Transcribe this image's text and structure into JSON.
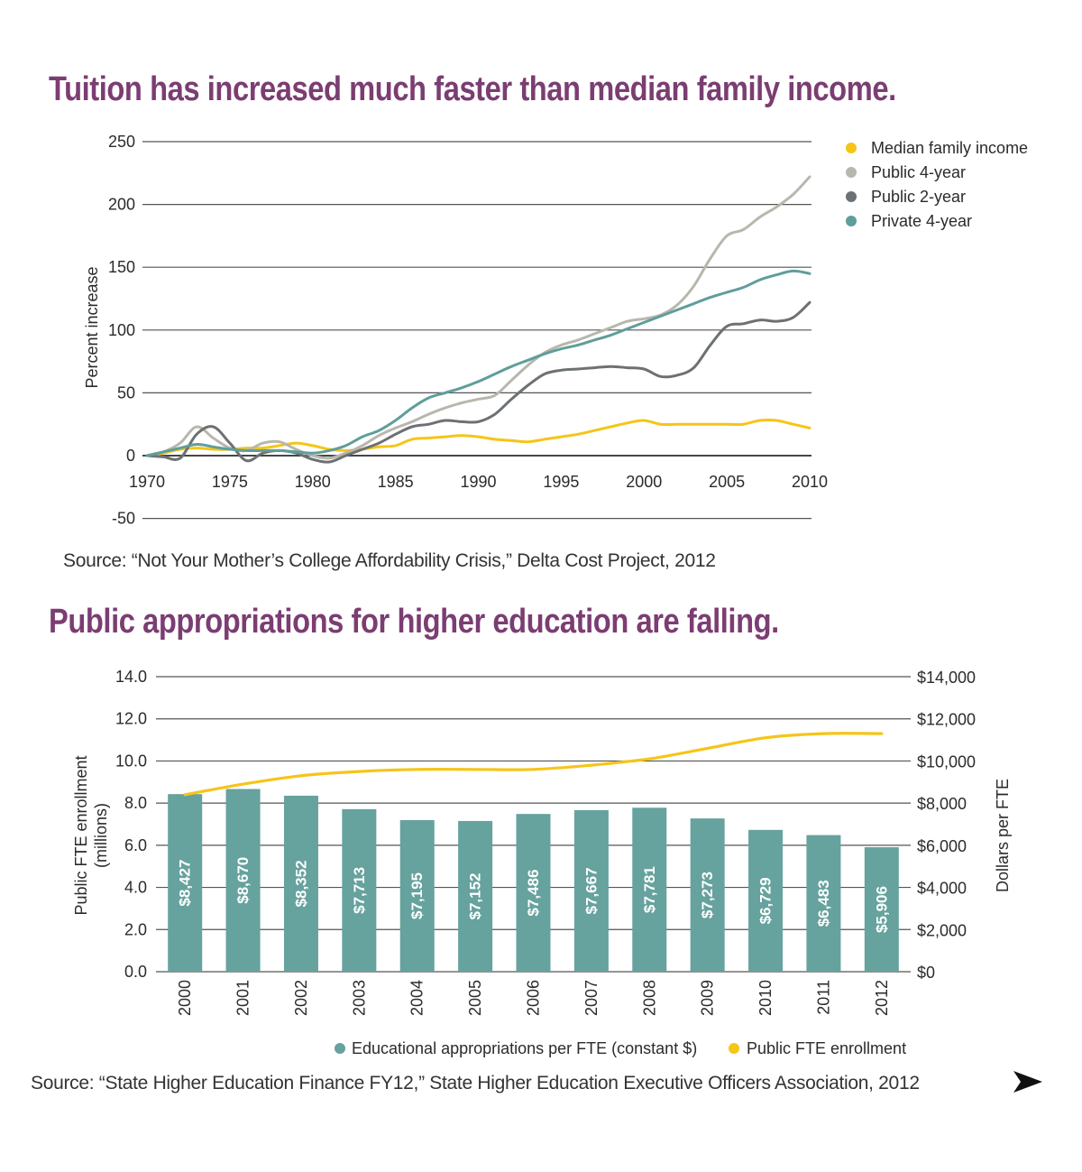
{
  "chart_data": [
    {
      "type": "line",
      "title": "Tuition has increased much faster than median family income.",
      "ylabel": "Percent increase",
      "ylim": [
        -50,
        250
      ],
      "xlim": [
        1970,
        2010
      ],
      "yticks": [
        "250",
        "200",
        "150",
        "100",
        "50",
        "0",
        "-50"
      ],
      "xticks": [
        "1970",
        "1975",
        "1980",
        "1985",
        "1990",
        "1995",
        "2000",
        "2005",
        "2010"
      ],
      "grid": true,
      "legend_position": "top-right",
      "series": [
        {
          "name": "Median family income",
          "color": "#f5c518",
          "x": [
            1970,
            1971,
            1972,
            1973,
            1974,
            1975,
            1976,
            1977,
            1978,
            1979,
            1980,
            1981,
            1982,
            1983,
            1984,
            1985,
            1986,
            1987,
            1988,
            1989,
            1990,
            1991,
            1992,
            1993,
            1994,
            1995,
            1996,
            1997,
            1998,
            1999,
            2000,
            2001,
            2002,
            2003,
            2004,
            2005,
            2006,
            2007,
            2008,
            2009,
            2010
          ],
          "values": [
            0,
            2,
            5,
            6,
            5,
            5,
            6,
            6,
            8,
            10,
            8,
            5,
            4,
            5,
            7,
            8,
            13,
            14,
            15,
            16,
            15,
            13,
            12,
            11,
            13,
            15,
            17,
            20,
            23,
            26,
            28,
            25,
            25,
            25,
            25,
            25,
            25,
            28,
            28,
            25,
            22
          ]
        },
        {
          "name": "Public 4-year",
          "color": "#b8b7ad",
          "x": [
            1970,
            1971,
            1972,
            1973,
            1974,
            1975,
            1976,
            1977,
            1978,
            1979,
            1980,
            1981,
            1982,
            1983,
            1984,
            1985,
            1986,
            1987,
            1988,
            1989,
            1990,
            1991,
            1992,
            1993,
            1994,
            1995,
            1996,
            1997,
            1998,
            1999,
            2000,
            2001,
            2002,
            2003,
            2004,
            2005,
            2006,
            2007,
            2008,
            2009,
            2010
          ],
          "values": [
            0,
            3,
            10,
            23,
            14,
            6,
            4,
            10,
            11,
            5,
            0,
            -2,
            2,
            8,
            16,
            22,
            27,
            33,
            38,
            42,
            45,
            48,
            60,
            72,
            82,
            88,
            92,
            97,
            102,
            107,
            109,
            112,
            120,
            135,
            157,
            175,
            180,
            190,
            198,
            208,
            222
          ]
        },
        {
          "name": "Public 2-year",
          "color": "#6d7174",
          "x": [
            1970,
            1971,
            1972,
            1973,
            1974,
            1975,
            1976,
            1977,
            1978,
            1979,
            1980,
            1981,
            1982,
            1983,
            1984,
            1985,
            1986,
            1987,
            1988,
            1989,
            1990,
            1991,
            1992,
            1993,
            1994,
            1995,
            1996,
            1997,
            1998,
            1999,
            2000,
            2001,
            2002,
            2003,
            2004,
            2005,
            2006,
            2007,
            2008,
            2009,
            2010
          ],
          "values": [
            0,
            -1,
            -2,
            17,
            23,
            10,
            -4,
            2,
            4,
            2,
            -3,
            -5,
            0,
            5,
            10,
            17,
            23,
            25,
            28,
            27,
            27,
            33,
            45,
            56,
            65,
            68,
            69,
            70,
            71,
            70,
            69,
            63,
            64,
            70,
            88,
            103,
            105,
            108,
            107,
            110,
            122
          ]
        },
        {
          "name": "Private 4-year",
          "color": "#5f9e9a",
          "x": [
            1970,
            1971,
            1972,
            1973,
            1974,
            1975,
            1976,
            1977,
            1978,
            1979,
            1980,
            1981,
            1982,
            1983,
            1984,
            1985,
            1986,
            1987,
            1988,
            1989,
            1990,
            1991,
            1992,
            1993,
            1994,
            1995,
            1996,
            1997,
            1998,
            1999,
            2000,
            2001,
            2002,
            2003,
            2004,
            2005,
            2006,
            2007,
            2008,
            2009,
            2010
          ],
          "values": [
            0,
            3,
            6,
            9,
            7,
            5,
            4,
            4,
            4,
            3,
            2,
            4,
            8,
            15,
            20,
            28,
            38,
            46,
            50,
            54,
            59,
            65,
            71,
            76,
            81,
            85,
            88,
            92,
            96,
            101,
            106,
            111,
            116,
            121,
            126,
            130,
            134,
            140,
            144,
            147,
            145
          ]
        }
      ],
      "source": "Source: “Not Your Mother’s College Affordability Crisis,” Delta Cost Project, 2012"
    },
    {
      "type": "bar",
      "title": "Public appropriations for higher education are falling.",
      "ylabel_left": "Public FTE enrollment (millions)",
      "ylabel_left_lines": [
        "Public FTE enrollment",
        "(millions)"
      ],
      "ylabel_right": "Dollars per FTE",
      "ylim_left": [
        0,
        14
      ],
      "ylim_right": [
        0,
        14000
      ],
      "yticks_left": [
        "14.0",
        "12.0",
        "10.0",
        "8.0",
        "6.0",
        "4.0",
        "2.0",
        "0.0"
      ],
      "yticks_right": [
        "$14,000",
        "$12,000",
        "$10,000",
        "$8,000",
        "$6,000",
        "$4,000",
        "$2,000",
        "$0"
      ],
      "grid": true,
      "legend_position": "bottom-right",
      "categories": [
        "2000",
        "2001",
        "2002",
        "2003",
        "2004",
        "2005",
        "2006",
        "2007",
        "2008",
        "2009",
        "2010",
        "2011",
        "2012"
      ],
      "series": [
        {
          "name": "Educational appropriations per FTE (constant $)",
          "type": "bar",
          "axis": "right",
          "color": "#66a29e",
          "values": [
            8427,
            8670,
            8352,
            7713,
            7195,
            7152,
            7486,
            7667,
            7781,
            7273,
            6729,
            6483,
            5906
          ],
          "labels": [
            "$8,427",
            "$8,670",
            "$8,352",
            "$7,713",
            "$7,195",
            "$7,152",
            "$7,486",
            "$7,667",
            "$7,781",
            "$7,273",
            "$6,729",
            "$6,483",
            "$5,906"
          ]
        },
        {
          "name": "Public FTE enrollment",
          "type": "line",
          "axis": "left",
          "color": "#f5c518",
          "values": [
            8.4,
            8.9,
            9.3,
            9.5,
            9.6,
            9.6,
            9.6,
            9.8,
            10.1,
            10.6,
            11.1,
            11.3,
            11.3
          ]
        }
      ],
      "source": "Source: “State Higher Education Finance FY12,” State Higher Education Executive Officers Association, 2012"
    }
  ]
}
